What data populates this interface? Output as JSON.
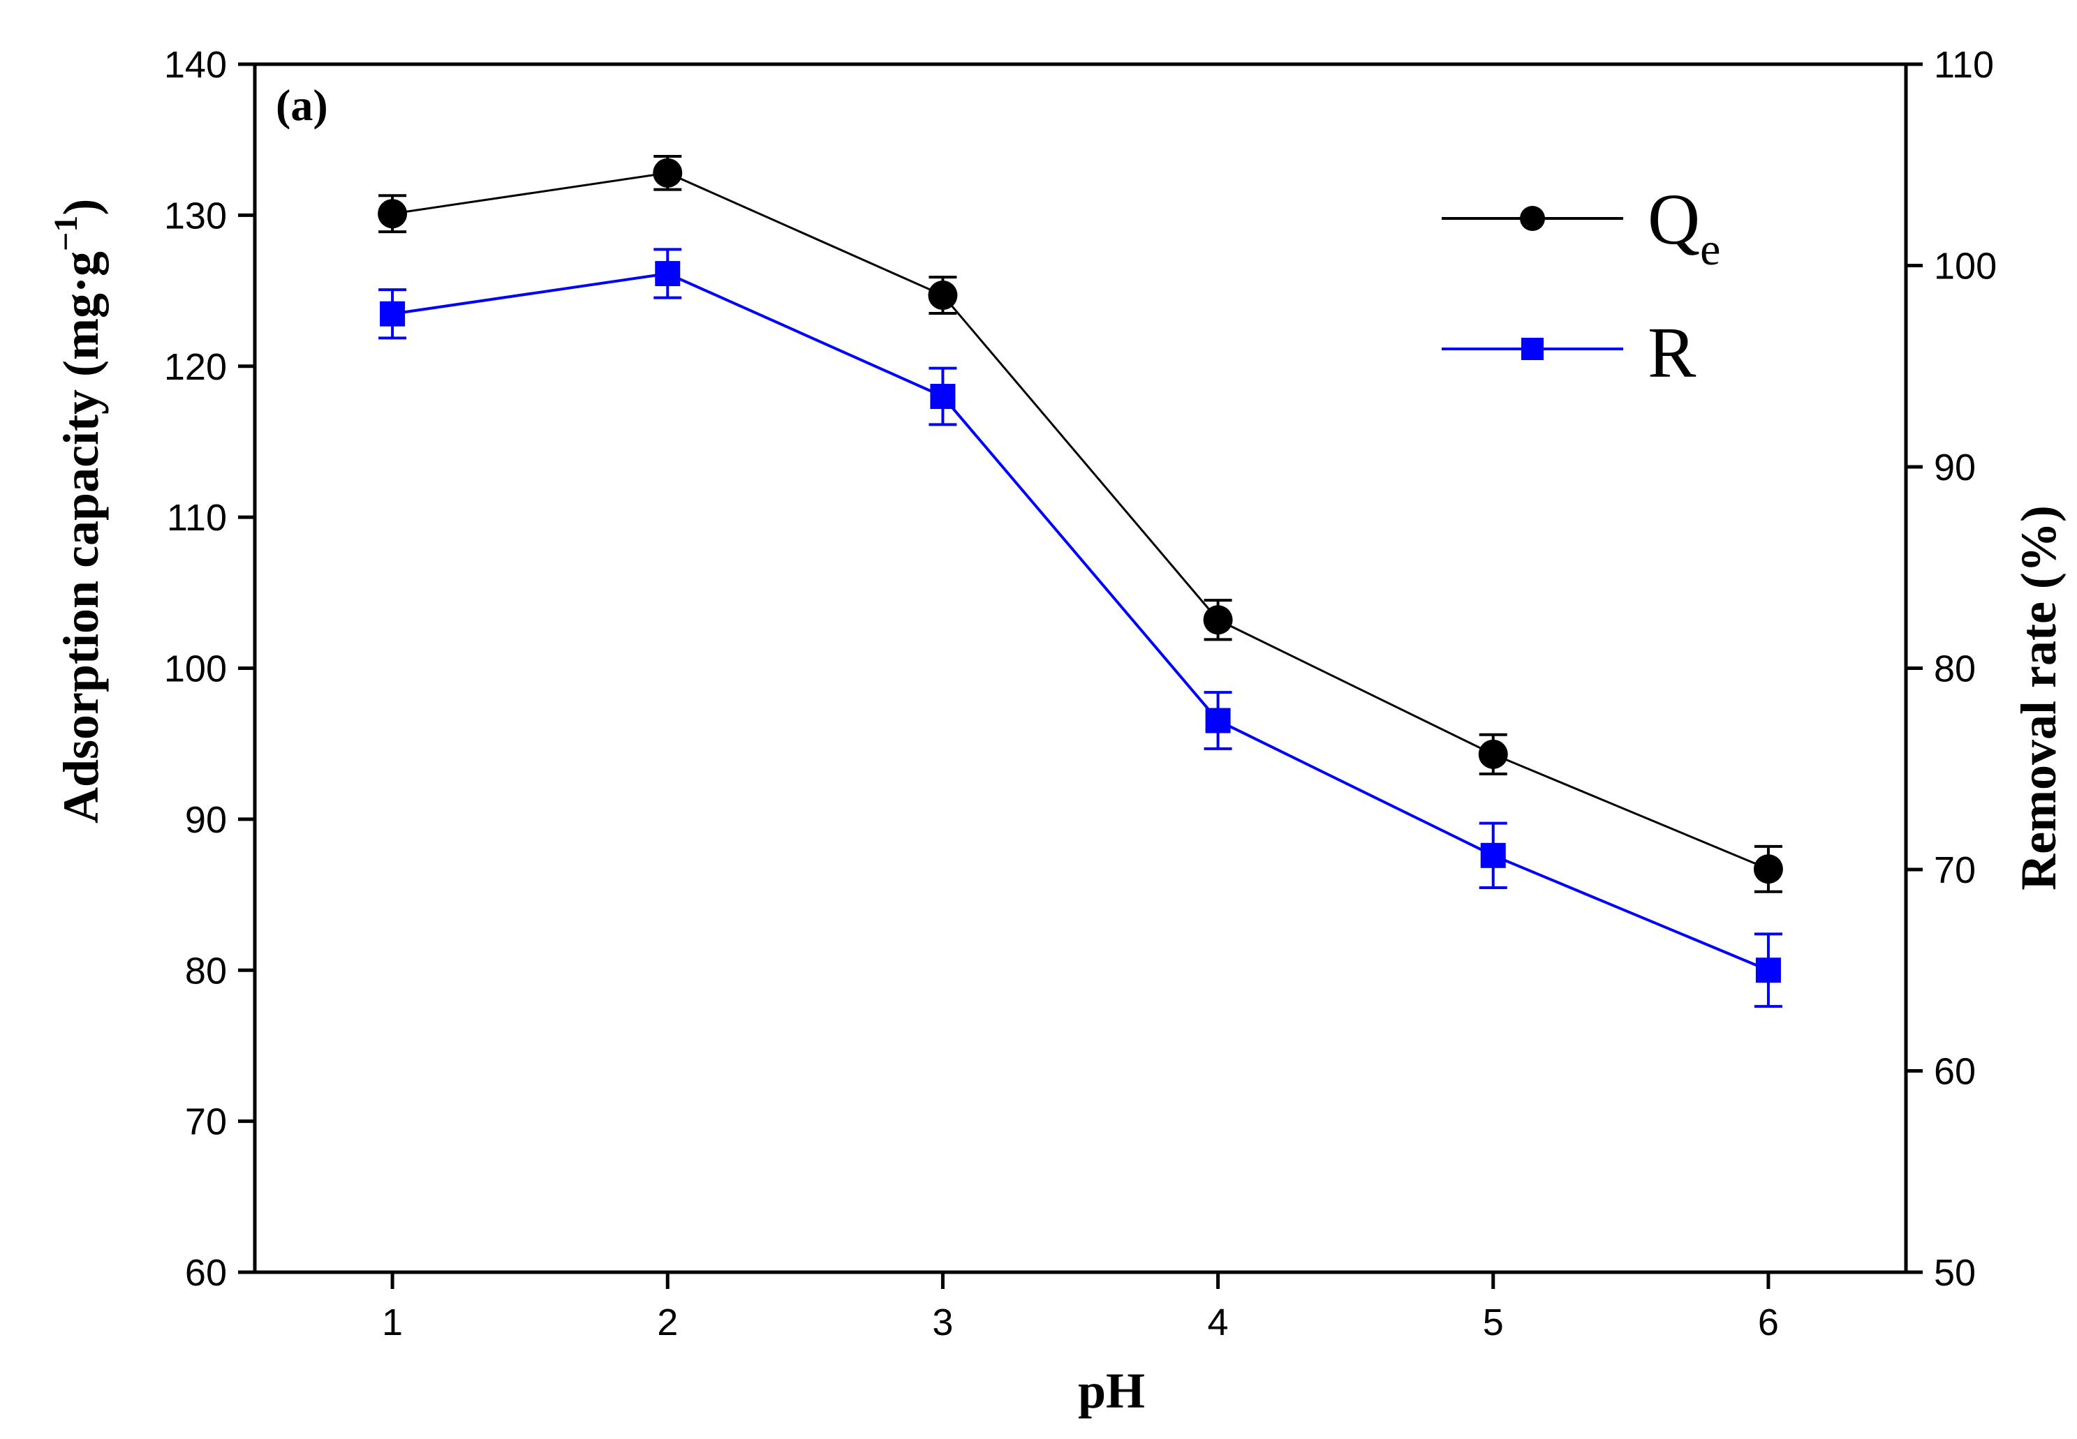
{
  "chart_data": {
    "type": "line",
    "panel_label": "(a)",
    "xlabel": "pH",
    "ylabel": "Adsorption capacity (mg·g",
    "ylabel_sup": "−1",
    "ylabel_close": ")",
    "y2label": "Removal rate (%)",
    "x": [
      1,
      2,
      3,
      4,
      5,
      6
    ],
    "xticks": [
      "1",
      "2",
      "3",
      "4",
      "5",
      "6"
    ],
    "xlim": [
      0.5,
      6.5
    ],
    "ylim": [
      60,
      140
    ],
    "yticks": [
      "60",
      "70",
      "80",
      "90",
      "100",
      "110",
      "120",
      "130",
      "140"
    ],
    "y2lim": [
      50,
      110
    ],
    "y2ticks": [
      "50",
      "60",
      "70",
      "80",
      "90",
      "100",
      "110"
    ],
    "grid": false,
    "legend_position": "top-right",
    "series": [
      {
        "name": "Qe",
        "legend_main": "Q",
        "legend_sub": "e",
        "axis": "left",
        "marker": "circle",
        "color": "#000000",
        "values": [
          130.1,
          132.8,
          124.7,
          103.2,
          94.3,
          86.7
        ],
        "errors": [
          1.2,
          1.1,
          1.2,
          1.3,
          1.3,
          1.5
        ]
      },
      {
        "name": "R",
        "legend_main": "R",
        "legend_sub": "",
        "axis": "right",
        "marker": "square",
        "color": "#0000ff",
        "values": [
          97.6,
          99.6,
          93.5,
          77.4,
          70.7,
          65.0
        ],
        "errors": [
          1.2,
          1.2,
          1.4,
          1.4,
          1.6,
          1.8
        ]
      }
    ]
  }
}
